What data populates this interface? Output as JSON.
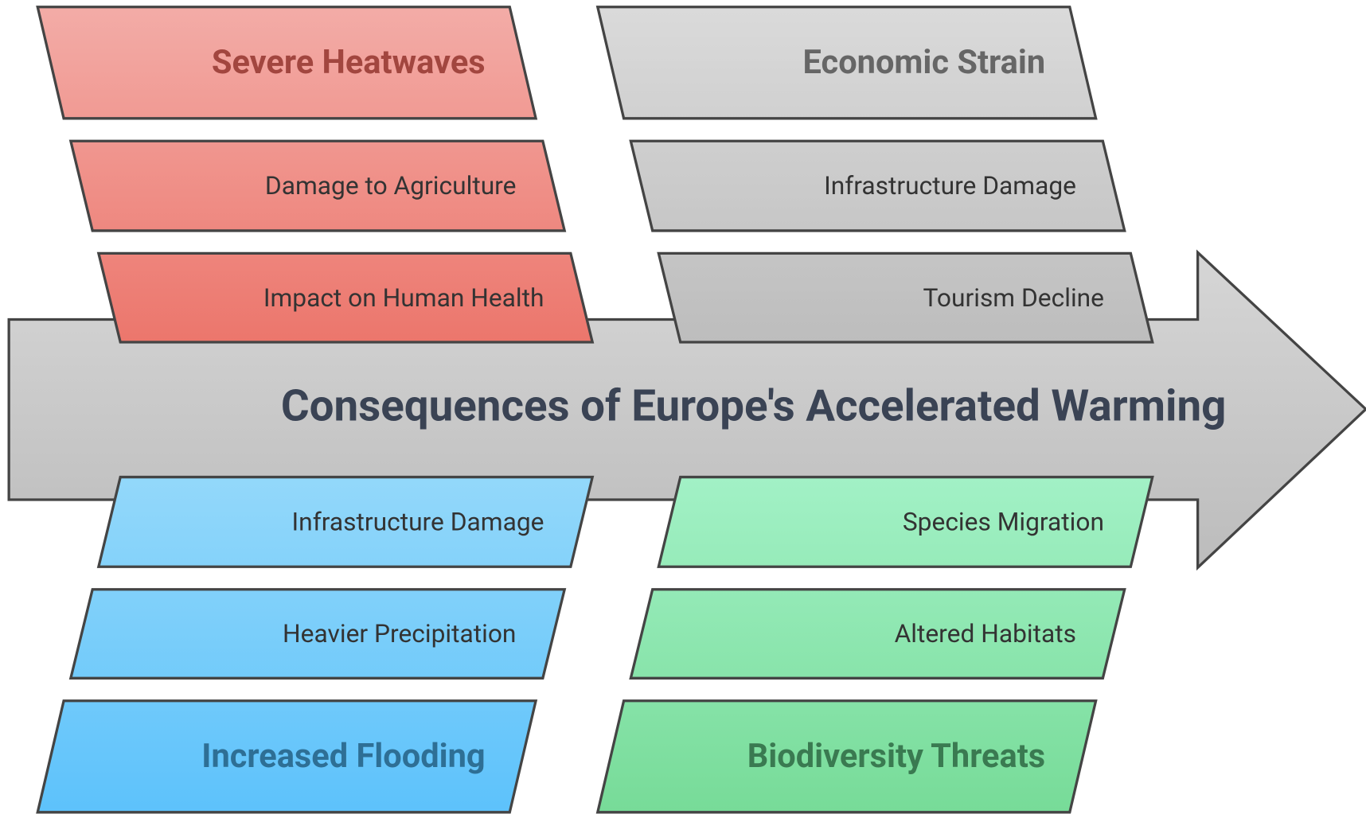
{
  "title": "Consequences of Europe's Accelerated Warming",
  "groups": [
    {
      "heading": "Severe Heatwaves",
      "items": [
        "Damage to Agriculture",
        "Impact on Human Health"
      ]
    },
    {
      "heading": "Economic Strain",
      "items": [
        "Infrastructure Damage",
        "Tourism Decline"
      ]
    },
    {
      "heading": "Increased Flooding",
      "items": [
        "Infrastructure Damage",
        "Heavier Precipitation"
      ]
    },
    {
      "heading": "Biodiversity Threats",
      "items": [
        "Species Migration",
        "Altered Habitats"
      ]
    }
  ]
}
